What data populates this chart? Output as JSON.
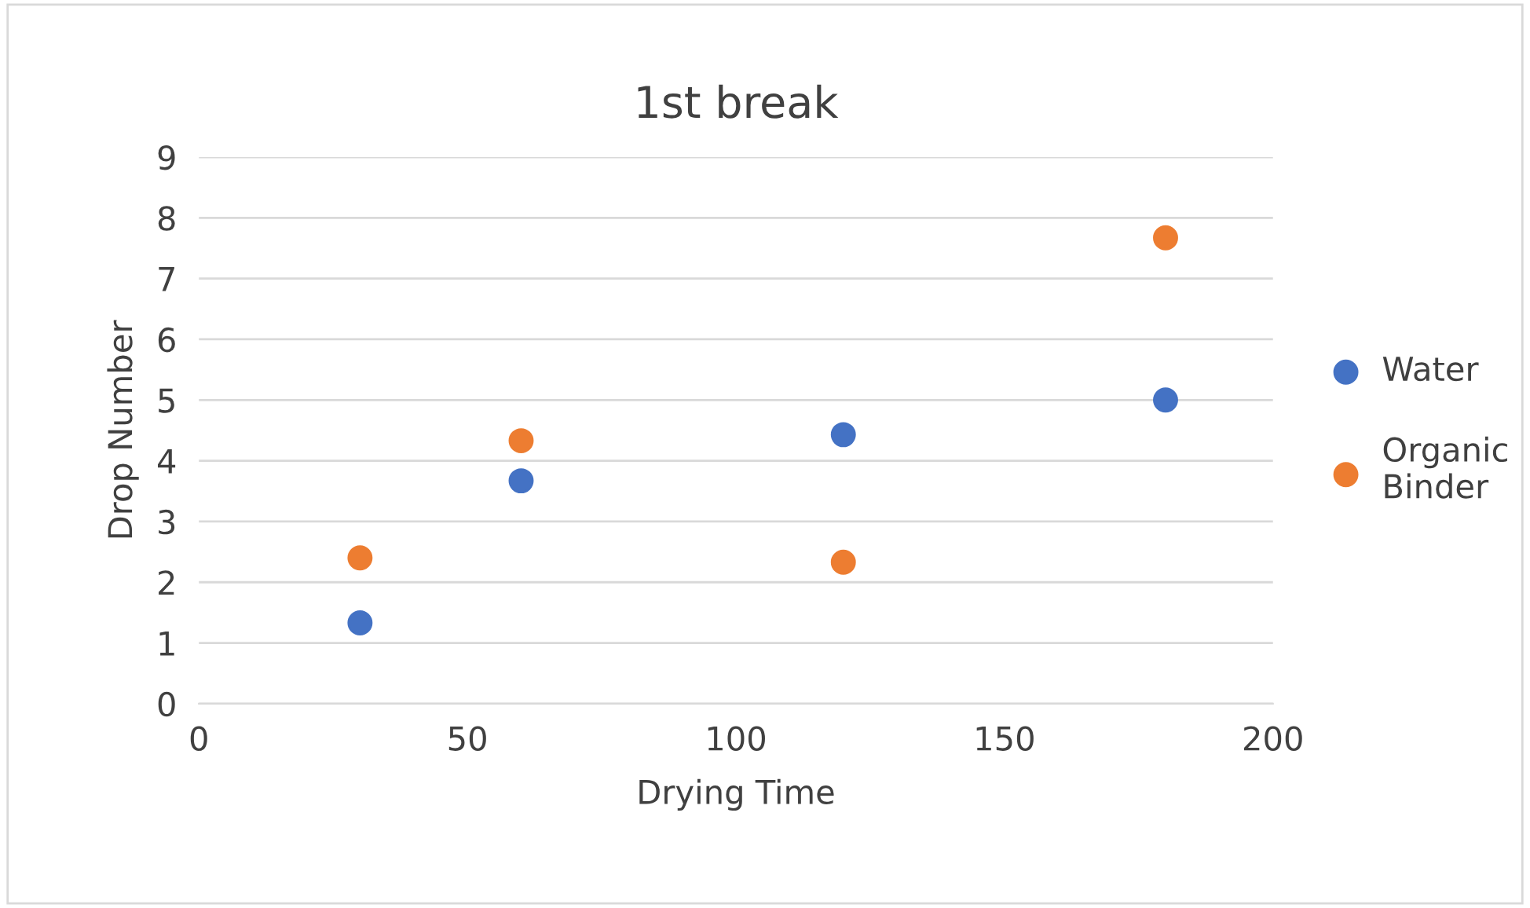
{
  "chart_data": {
    "type": "scatter",
    "title": "1st break",
    "xlabel": "Drying Time",
    "ylabel": "Drop Number",
    "x": [
      30,
      60,
      120,
      180
    ],
    "series": [
      {
        "name": "Water",
        "color": "#4472c4",
        "values": [
          1.33,
          3.67,
          4.43,
          5
        ]
      },
      {
        "name": "Organic Binder",
        "color": "#ed7d31",
        "values": [
          2.4,
          4.33,
          2.33,
          7.67
        ]
      }
    ],
    "xlim": [
      0,
      200
    ],
    "xticks": [
      0,
      50,
      100,
      150,
      200
    ],
    "ylim": [
      0,
      9
    ],
    "yticks": [
      0,
      1,
      2,
      3,
      4,
      5,
      6,
      7,
      8,
      9
    ],
    "grid": "y",
    "legend": "right",
    "marker": "circle"
  }
}
